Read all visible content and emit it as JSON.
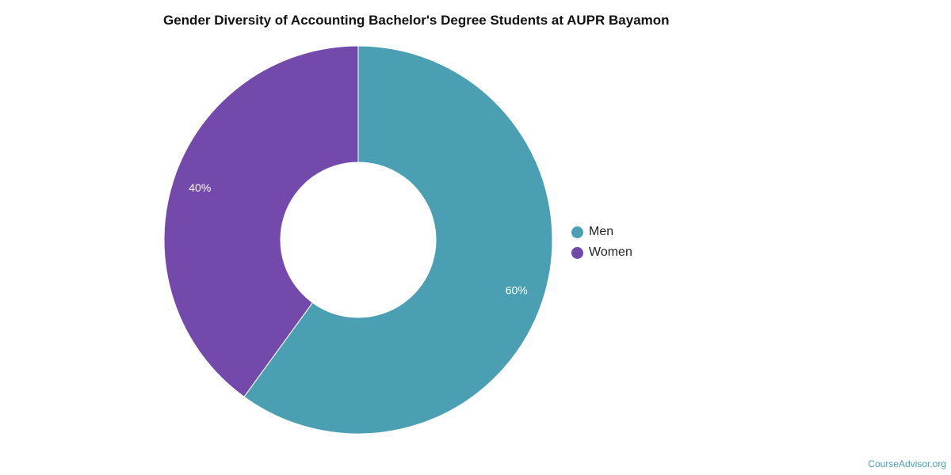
{
  "chart_data": {
    "type": "pie",
    "title": "Gender Diversity of Accounting Bachelor's Degree Students at AUPR Bayamon",
    "categories": [
      "Men",
      "Women"
    ],
    "values": [
      60,
      40
    ],
    "data_labels": [
      "60%",
      "40%"
    ],
    "colors": [
      "#4aa0b2",
      "#7449ac"
    ],
    "donut": true,
    "legend_position": "right"
  },
  "legend": {
    "items": [
      {
        "label": "Men",
        "color": "#4aa0b2"
      },
      {
        "label": "Women",
        "color": "#7449ac"
      }
    ]
  },
  "watermark": "CourseAdvisor.org"
}
